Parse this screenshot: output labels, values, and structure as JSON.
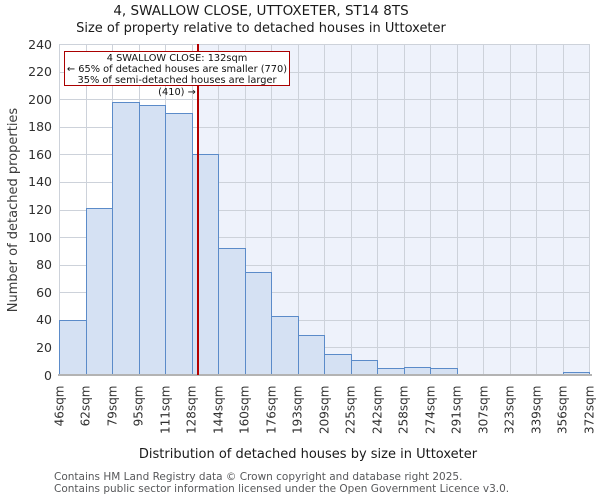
{
  "header": {
    "title": "4, SWALLOW CLOSE, UTTOXETER, ST14 8TS",
    "subtitle": "Size of property relative to detached houses in Uttoxeter"
  },
  "annotation": {
    "line1": "4 SWALLOW CLOSE: 132sqm",
    "line2": "← 65% of detached houses are smaller (770)",
    "line3": "35% of semi-detached houses are larger (410) →"
  },
  "footer": {
    "line1": "Contains HM Land Registry data © Crown copyright and database right 2025.",
    "line2": "Contains public sector information licensed under the Open Government Licence v3.0."
  },
  "chart_data": {
    "type": "bar",
    "title": "4, SWALLOW CLOSE, UTTOXETER, ST14 8TS",
    "subtitle": "Size of property relative to detached houses in Uttoxeter",
    "xlabel": "Distribution of detached houses by size in Uttoxeter",
    "ylabel": "Number of detached properties",
    "bin_edges_sqm": [
      46,
      62,
      79,
      95,
      111,
      128,
      144,
      160,
      176,
      193,
      209,
      225,
      242,
      258,
      274,
      291,
      307,
      323,
      339,
      356,
      372
    ],
    "x_tick_labels": [
      "46sqm",
      "62sqm",
      "79sqm",
      "95sqm",
      "111sqm",
      "128sqm",
      "144sqm",
      "160sqm",
      "176sqm",
      "193sqm",
      "209sqm",
      "225sqm",
      "242sqm",
      "258sqm",
      "274sqm",
      "291sqm",
      "307sqm",
      "323sqm",
      "339sqm",
      "356sqm",
      "372sqm"
    ],
    "values": [
      40,
      121,
      198,
      196,
      190,
      160,
      92,
      75,
      43,
      29,
      15,
      11,
      5,
      6,
      5,
      1,
      1,
      1,
      0,
      2
    ],
    "y_ticks": [
      0,
      20,
      40,
      60,
      80,
      100,
      120,
      140,
      160,
      180,
      200,
      220,
      240
    ],
    "ylim": [
      0,
      240
    ],
    "marker_sqm": 132,
    "grid": true,
    "legend_position": "none",
    "colors": {
      "bar_fill": "#d5e1f3",
      "bar_edge": "#5b8bc9",
      "marker_line": "#b40000",
      "annotation_border": "#aa0000",
      "shaded_region": "#eef2fb",
      "gridline": "#cdd2da",
      "axis_line": "#b3b3b3"
    }
  }
}
